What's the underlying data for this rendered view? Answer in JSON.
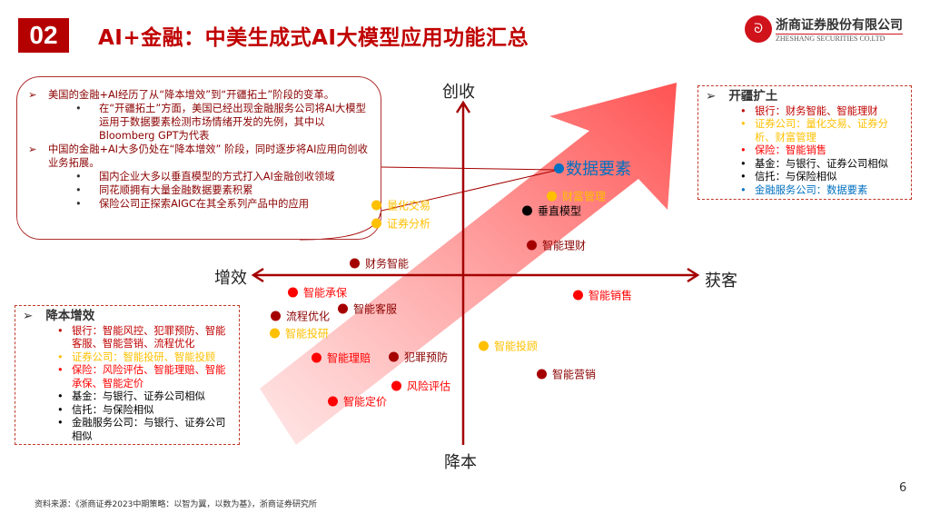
{
  "header": {
    "number": "02",
    "title": "AI+金融：中美生成式AI大模型应用功能汇总"
  },
  "logo": {
    "cn": "浙商证券股份有限公司",
    "en": "ZHESHANG SECURITIES CO.LTD"
  },
  "colors": {
    "accent": "#b50000",
    "dark_red": "#a50000",
    "red": "#ff0000",
    "yellow": "#ffc000",
    "black": "#000000",
    "blue": "#0070c0"
  },
  "note": {
    "items": [
      {
        "text": "美国的金融+AI经历了从“降本增效”到“开疆拓土”阶段的变革。",
        "sub": [
          "在“开疆拓土”方面，美国已经出现金融服务公司将AI大模型运用于数据要素检测市场情绪开发的先例，其中以Bloomberg GPT为代表"
        ]
      },
      {
        "text": "中国的金融+AI大多仍处在“降本增效” 阶段，同时逐步将AI应用向创收业务拓展。",
        "sub": [
          "国内企业大多以垂直模型的方式打入AI金融创收领域",
          "同花顺拥有大量金融数据要素积累",
          "保险公司正探索AIGC在其全系列产品中的应用"
        ]
      }
    ]
  },
  "expand_box": {
    "heading": "开疆扩土",
    "items": [
      {
        "text": "银行：财务智能、智能理财",
        "color": "#c00000"
      },
      {
        "text": "证券公司：量化交易、证券分析、财富管理",
        "color": "#ffc000"
      },
      {
        "text": "保险：智能销售",
        "color": "#ff0000"
      },
      {
        "text": "基金：与银行、证券公司相似",
        "color": "#000000"
      },
      {
        "text": "信托：与保险相似",
        "color": "#000000"
      },
      {
        "text": "金融服务公司：数据要素",
        "color": "#0070c0"
      }
    ]
  },
  "cost_box": {
    "heading": "降本增效",
    "items": [
      {
        "text": "银行：智能风控、犯罪预防、智能客服、智能营销、流程优化",
        "color": "#c00000"
      },
      {
        "text": "证券公司：智能投研、智能投顾",
        "color": "#ffc000"
      },
      {
        "text": "保险：风险评估、智能理赔、智能承保、智能定价",
        "color": "#ff0000"
      },
      {
        "text": "基金：与银行、证券公司相似",
        "color": "#000000"
      },
      {
        "text": "信托：与保险相似",
        "color": "#000000"
      },
      {
        "text": "金融服务公司：与银行、证券公司相似",
        "color": "#000000"
      }
    ]
  },
  "axes": {
    "top": "创收",
    "bottom": "降本",
    "left": "增效",
    "right": "获客"
  },
  "points": [
    {
      "label": "数据要素",
      "color": "#0070c0"
    },
    {
      "label": "财富管理",
      "color": "#ffc000"
    },
    {
      "label": "垂直模型",
      "color": "#000000"
    },
    {
      "label": "智能理财",
      "color": "#a50000"
    },
    {
      "label": "量化交易",
      "color": "#ffc000"
    },
    {
      "label": "证券分析",
      "color": "#ffc000"
    },
    {
      "label": "财务智能",
      "color": "#a50000"
    },
    {
      "label": "智能承保",
      "color": "#ff0000"
    },
    {
      "label": "智能客服",
      "color": "#a50000"
    },
    {
      "label": "流程优化",
      "color": "#a50000"
    },
    {
      "label": "智能投研",
      "color": "#ffc000"
    },
    {
      "label": "智能理赔",
      "color": "#ff0000"
    },
    {
      "label": "犯罪预防",
      "color": "#a50000"
    },
    {
      "label": "风险评估",
      "color": "#ff0000"
    },
    {
      "label": "智能定价",
      "color": "#ff0000"
    },
    {
      "label": "智能销售",
      "color": "#ff0000"
    },
    {
      "label": "智能投顾",
      "color": "#ffc000"
    },
    {
      "label": "智能营销",
      "color": "#a50000"
    }
  ],
  "footer": {
    "source": "资料来源：《浙商证券2023中期策略：以智为翼，以数为基》，浙商证券研究所",
    "page": "6"
  }
}
